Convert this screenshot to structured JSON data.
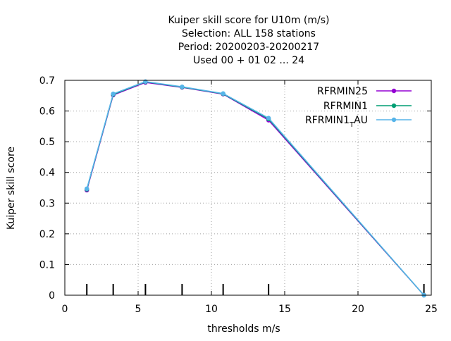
{
  "chart_data": {
    "type": "line",
    "title_lines": [
      "Kuiper skill score  for U10m (m/s)",
      "Selection: ALL    158 stations",
      "Period: 20200203-20200217",
      "Used  00 + 01 02 ... 24"
    ],
    "xlabel": "thresholds m/s",
    "ylabel": "Kuiper skill score",
    "xlim": [
      0,
      25
    ],
    "ylim": [
      0,
      0.7
    ],
    "x_ticks": [
      0,
      5,
      10,
      15,
      20,
      25
    ],
    "y_ticks": [
      0,
      0.1,
      0.2,
      0.3,
      0.4,
      0.5,
      0.6,
      0.7
    ],
    "x_tick_labels": [
      "0",
      "5",
      "10",
      "15",
      "20",
      "25"
    ],
    "y_tick_labels": [
      "0",
      "0.1",
      "0.2",
      "0.3",
      "0.4",
      "0.5",
      "0.6",
      "0.7"
    ],
    "grid": true,
    "legend_position": "top-right",
    "threshold_marks": [
      1.5,
      3.3,
      5.5,
      8.0,
      10.8,
      13.9,
      24.5
    ],
    "series": [
      {
        "name": "RFRMIN25",
        "color": "#9400d3",
        "x": [
          1.5,
          3.3,
          5.5,
          8.0,
          10.8,
          13.9,
          24.5
        ],
        "y": [
          0.342,
          0.652,
          0.693,
          0.677,
          0.655,
          0.57,
          0.0
        ]
      },
      {
        "name": "RFRMIN1",
        "color": "#009e73",
        "x": [
          1.5,
          3.3,
          5.5,
          8.0,
          10.8,
          13.9,
          24.5
        ],
        "y": [
          0.345,
          0.654,
          0.695,
          0.678,
          0.656,
          0.574,
          0.0
        ]
      },
      {
        "name": "RFRMIN1",
        "name_subscript": "T",
        "name_suffix": "AU",
        "color": "#56b4e9",
        "x": [
          1.5,
          3.3,
          5.5,
          8.0,
          10.8,
          13.9,
          24.5
        ],
        "y": [
          0.347,
          0.656,
          0.696,
          0.679,
          0.657,
          0.577,
          0.0
        ]
      }
    ]
  }
}
